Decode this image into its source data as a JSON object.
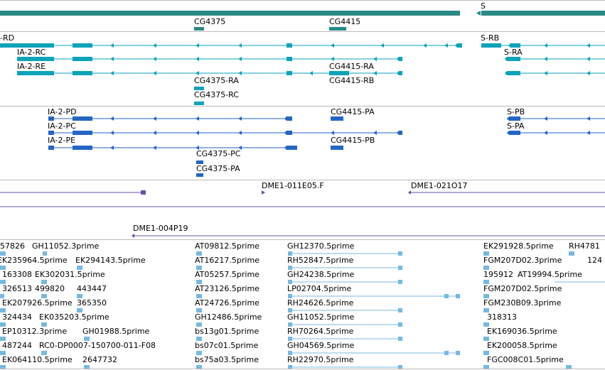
{
  "colors": {
    "gene": "#2a8a85",
    "transcript": "#0da3b8",
    "transcript_alt": "#1a88c4",
    "protein": "#2466c4",
    "cdna": "#6a4fa8",
    "est": "#78b8e0",
    "divider": "#bbbbbb"
  },
  "tracks": {
    "genes": {
      "labels": [
        "S",
        "CG4375",
        "CG4415"
      ]
    },
    "transcripts": {
      "labels": [
        "-RD",
        "IA-2-RC",
        "IA-2-RE",
        "CG4375-RA",
        "CG4375-RC",
        "CG4415-RA",
        "CG4415-RB",
        "S-RB",
        "S-RA"
      ]
    },
    "proteins": {
      "labels": [
        "IA-2-PD",
        "IA-2-PC",
        "IA-2-PE",
        "CG4375-PC",
        "CG4375-PA",
        "CG4415-PA",
        "CG4415-PB",
        "S-PB",
        "S-PA"
      ]
    },
    "cdna": {
      "labels": [
        "DME1-011E05.F",
        "DME1-021O17",
        "DME1-004P19"
      ]
    },
    "ests": {
      "labels": [
        "57826",
        "GH11052.3prime",
        "EK235964.5prime",
        "EK294143.5prime",
        "163308",
        "EK302031.5prime",
        "326513",
        "499820",
        "443447",
        "EK207926.5prime",
        "365350",
        "324434",
        "EK035203.5prime",
        "EP10312.3prime",
        "GH01988.5prime",
        "487244",
        "RC0-DP0007-150700-011-F08",
        "EK064110.5prime",
        "2647732",
        "AT09812.5prime",
        "AT16217.5prime",
        "AT05257.5prime",
        "AT23126.5prime",
        "AT24726.5prime",
        "GH12486.5prime",
        "bs13g01.5prime",
        "bs07c01.5prime",
        "bs75a03.5prime",
        "GH12370.5prime",
        "RH52847.5prime",
        "GH24238.5prime",
        "LP02704.5prime",
        "RH24626.5prime",
        "GH11052.5prime",
        "RH70264.5prime",
        "GH04569.5prime",
        "RH22970.5prime",
        "EK291928.5prime",
        "RH4781",
        "FGM207D02.3prime",
        "124",
        "195912",
        "AT19994.5prime",
        "FGM207D02.5prime",
        "FGM230B09.3prime",
        "318313",
        "EK169036.5prime",
        "EK200058.5prime",
        "FGC008C01.5prime"
      ]
    }
  }
}
